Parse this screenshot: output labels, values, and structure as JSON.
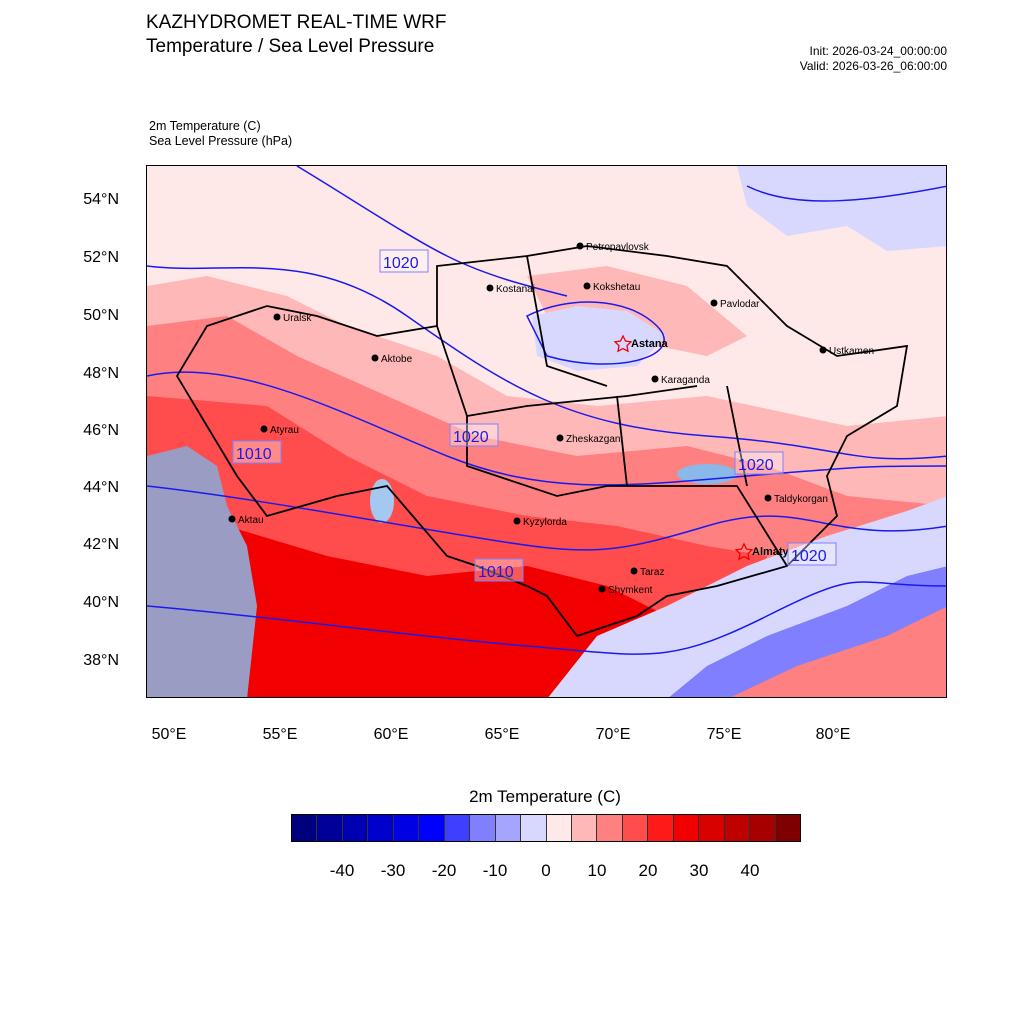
{
  "header": {
    "title_line1": "KAZHYDROMET REAL-TIME WRF",
    "title_line2": "Temperature / Sea Level Pressure",
    "init": "Init: 2026-03-24_00:00:00",
    "valid": "Valid: 2026-03-26_06:00:00",
    "field1": "2m Temperature   (C)",
    "field2": "Sea Level Pressure   (hPa)"
  },
  "axes": {
    "lat_labels": [
      "54°N",
      "52°N",
      "50°N",
      "48°N",
      "46°N",
      "44°N",
      "42°N",
      "40°N",
      "38°N"
    ],
    "lon_labels": [
      "50°E",
      "55°E",
      "60°E",
      "65°E",
      "70°E",
      "75°E",
      "80°E"
    ]
  },
  "cities": [
    {
      "name": "Petropavlovsk",
      "bold": false
    },
    {
      "name": "Kostanai",
      "bold": false
    },
    {
      "name": "Kokshetau",
      "bold": false
    },
    {
      "name": "Pavlodar",
      "bold": false
    },
    {
      "name": "Uralsk",
      "bold": false
    },
    {
      "name": "Aktobe",
      "bold": false
    },
    {
      "name": "Astana",
      "bold": true
    },
    {
      "name": "Ustkamen",
      "bold": false
    },
    {
      "name": "Karaganda",
      "bold": false
    },
    {
      "name": "Atyrau",
      "bold": false
    },
    {
      "name": "Zheskazgan",
      "bold": false
    },
    {
      "name": "Taldykorgan",
      "bold": false
    },
    {
      "name": "Aktau",
      "bold": false
    },
    {
      "name": "Kyzylorda",
      "bold": false
    },
    {
      "name": "Almaty",
      "bold": true
    },
    {
      "name": "Taraz",
      "bold": false
    },
    {
      "name": "Shymkent",
      "bold": false
    }
  ],
  "isobar_labels": [
    "1020",
    "1020",
    "1010",
    "1020",
    "1020",
    "1010"
  ],
  "colorbar": {
    "title": "2m Temperature  (C)",
    "labels": [
      "-40",
      "-30",
      "-20",
      "-10",
      "0",
      "10",
      "20",
      "30",
      "40"
    ],
    "colors": [
      "#00007f",
      "#000098",
      "#0000b2",
      "#0000cc",
      "#0000e5",
      "#0000ff",
      "#3f3fff",
      "#7f7fff",
      "#a5a5ff",
      "#d8d8ff",
      "#ffe8e8",
      "#ffb8b8",
      "#ff8080",
      "#ff4c4c",
      "#ff1a1a",
      "#f20000",
      "#d90000",
      "#bf0000",
      "#a60000",
      "#7f0000"
    ]
  },
  "map_colors": {
    "cold": "#d8d8ff",
    "mild": "#ffe8e8",
    "warm1": "#ffb8b8",
    "warm2": "#ff8080",
    "warm3": "#ff4c4c",
    "hot": "#f20000",
    "sea": "#9a9cc4",
    "isobar": "#1a1aee"
  }
}
